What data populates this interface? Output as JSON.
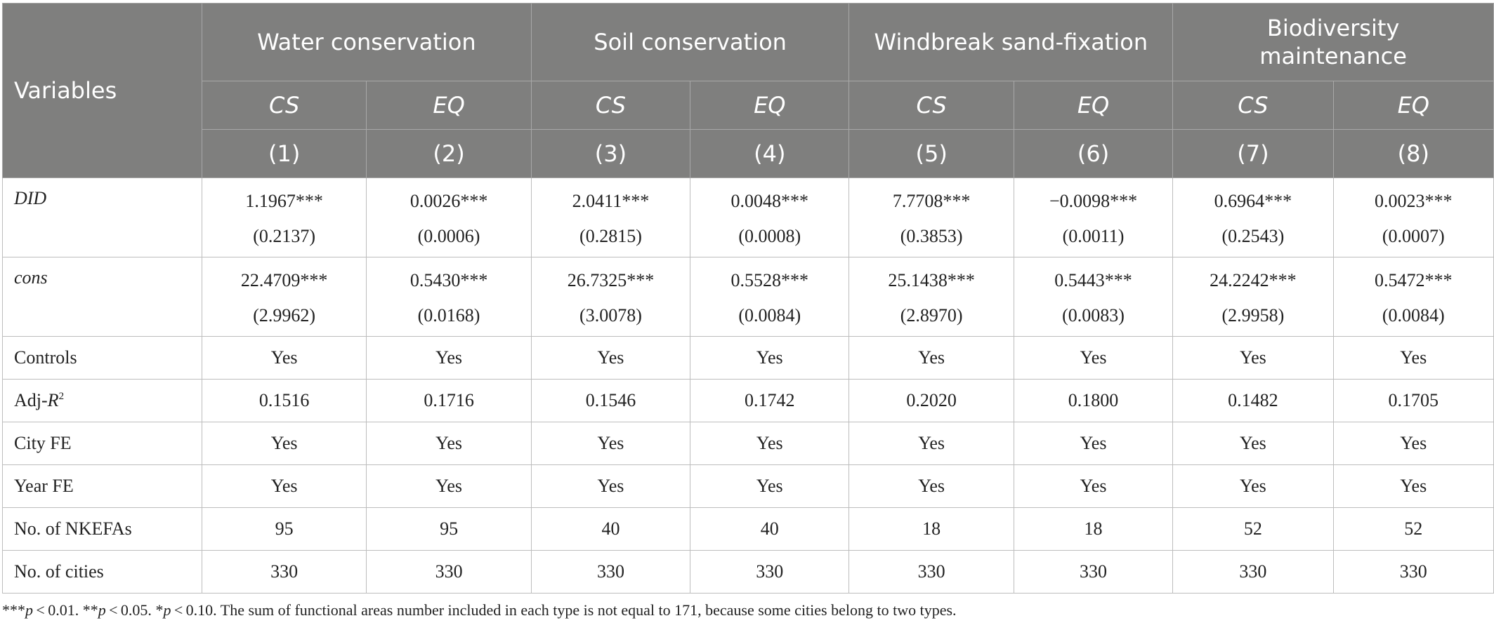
{
  "header": {
    "variables_label": "Variables",
    "groups": [
      "Water conservation",
      "Soil conservation",
      "Windbreak sand-fixation",
      "Biodiversity\nmaintenance"
    ],
    "subheads": [
      "CS",
      "EQ",
      "CS",
      "EQ",
      "CS",
      "EQ",
      "CS",
      "EQ"
    ],
    "column_numbers": [
      "(1)",
      "(2)",
      "(3)",
      "(4)",
      "(5)",
      "(6)",
      "(7)",
      "(8)"
    ]
  },
  "rows": {
    "did": {
      "label": "DID",
      "coef": [
        "1.1967***",
        "0.0026***",
        "2.0411***",
        "0.0048***",
        "7.7708***",
        "−0.0098***",
        "0.6964***",
        "0.0023***"
      ],
      "se": [
        "(0.2137)",
        "(0.0006)",
        "(0.2815)",
        "(0.0008)",
        "(0.3853)",
        "(0.0011)",
        "(0.2543)",
        "(0.0007)"
      ]
    },
    "cons": {
      "label": "cons",
      "coef": [
        "22.4709***",
        "0.5430***",
        "26.7325***",
        "0.5528***",
        "25.1438***",
        "0.5443***",
        "24.2242***",
        "0.5472***"
      ],
      "se": [
        "(2.9962)",
        "(0.0168)",
        "(3.0078)",
        "(0.0084)",
        "(2.8970)",
        "(0.0083)",
        "(2.9958)",
        "(0.0084)"
      ]
    },
    "controls": {
      "label": "Controls",
      "values": [
        "Yes",
        "Yes",
        "Yes",
        "Yes",
        "Yes",
        "Yes",
        "Yes",
        "Yes"
      ]
    },
    "adj_r2": {
      "label_prefix": "Adj-",
      "label_var": "R",
      "label_sup": "2",
      "values": [
        "0.1516",
        "0.1716",
        "0.1546",
        "0.1742",
        "0.2020",
        "0.1800",
        "0.1482",
        "0.1705"
      ]
    },
    "city_fe": {
      "label": "City FE",
      "values": [
        "Yes",
        "Yes",
        "Yes",
        "Yes",
        "Yes",
        "Yes",
        "Yes",
        "Yes"
      ]
    },
    "year_fe": {
      "label": "Year FE",
      "values": [
        "Yes",
        "Yes",
        "Yes",
        "Yes",
        "Yes",
        "Yes",
        "Yes",
        "Yes"
      ]
    },
    "nkefas": {
      "label": "No. of NKEFAs",
      "values": [
        "95",
        "95",
        "40",
        "40",
        "18",
        "18",
        "52",
        "52"
      ]
    },
    "cities": {
      "label": "No. of cities",
      "values": [
        "330",
        "330",
        "330",
        "330",
        "330",
        "330",
        "330",
        "330"
      ]
    }
  },
  "note": {
    "stars3": "***",
    "p": "p",
    "lt1": " < 0.01. ",
    "stars2": "**",
    "lt2": " < 0.05. ",
    "stars1": "*",
    "lt3": " < 0.10. ",
    "text": "The sum of functional areas number included in each type is not equal to 171, because some cities belong to two types."
  }
}
